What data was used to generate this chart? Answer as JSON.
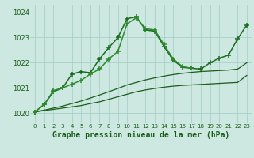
{
  "title": "Graphe pression niveau de la mer (hPa)",
  "hours": [
    0,
    1,
    2,
    3,
    4,
    5,
    6,
    7,
    8,
    9,
    10,
    11,
    12,
    13,
    14,
    15,
    16,
    17,
    18,
    19,
    20,
    21,
    22,
    23
  ],
  "ylim": [
    1019.6,
    1024.3
  ],
  "yticks": [
    1020,
    1021,
    1022,
    1023,
    1024
  ],
  "bg_color": "#cce8e0",
  "grid_color": "#aacfca",
  "lines": [
    {
      "y": [
        1020.05,
        1020.1,
        1020.15,
        1020.2,
        1020.25,
        1020.3,
        1020.38,
        1020.45,
        1020.55,
        1020.65,
        1020.75,
        1020.85,
        1020.92,
        1020.98,
        1021.03,
        1021.07,
        1021.1,
        1021.12,
        1021.14,
        1021.16,
        1021.18,
        1021.2,
        1021.22,
        1021.5
      ],
      "color": "#1a5c1a",
      "lw": 0.9,
      "marker": null,
      "ms": 4,
      "mew": 1.0
    },
    {
      "y": [
        1020.05,
        1020.12,
        1020.2,
        1020.28,
        1020.38,
        1020.48,
        1020.6,
        1020.72,
        1020.85,
        1020.98,
        1021.12,
        1021.22,
        1021.32,
        1021.4,
        1021.47,
        1021.53,
        1021.58,
        1021.62,
        1021.65,
        1021.67,
        1021.69,
        1021.71,
        1021.75,
        1022.0
      ],
      "color": "#1a5c1a",
      "lw": 0.9,
      "marker": null,
      "ms": 4,
      "mew": 1.0
    },
    {
      "y": [
        1020.05,
        1020.35,
        1020.85,
        1021.0,
        1021.55,
        1021.65,
        1021.6,
        1022.15,
        1022.6,
        1023.0,
        1023.75,
        1023.82,
        1023.3,
        1023.25,
        1022.65,
        1022.1,
        1021.82,
        1021.78,
        1021.75,
        1022.0,
        1022.18,
        1022.3,
        1022.95,
        1023.5
      ],
      "color": "#1a6b20",
      "lw": 1.1,
      "marker": "+",
      "ms": 5,
      "mew": 1.1
    },
    {
      "y": [
        1020.05,
        1020.35,
        1020.9,
        1021.0,
        1021.15,
        1021.3,
        1021.55,
        1021.75,
        1022.15,
        1022.45,
        1023.55,
        1023.78,
        1023.35,
        1023.3,
        1022.72,
        1022.15,
        1021.85,
        1021.78,
        null,
        null,
        null,
        null,
        null,
        null
      ],
      "color": "#2d8b2d",
      "lw": 1.1,
      "marker": "+",
      "ms": 5,
      "mew": 1.1
    }
  ]
}
